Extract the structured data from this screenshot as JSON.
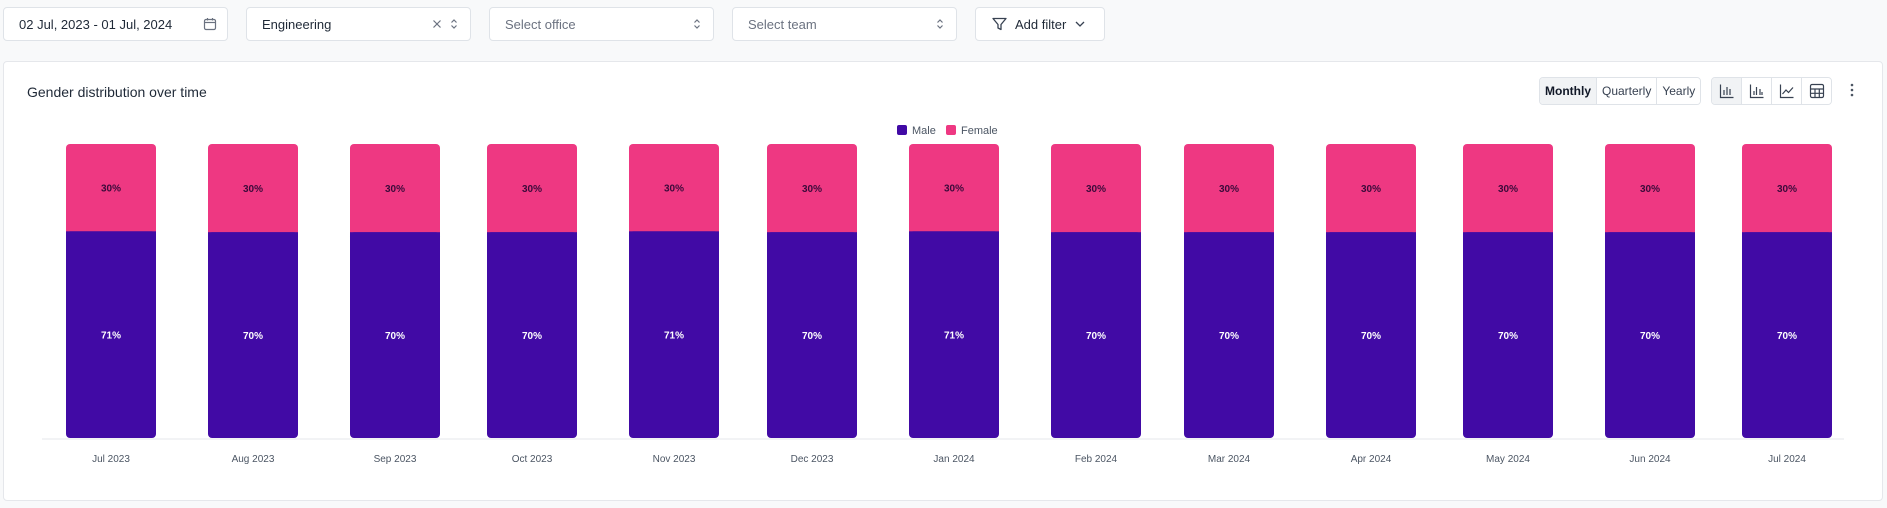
{
  "filters": {
    "date_range": "02 Jul, 2023 - 01 Jul, 2024",
    "department": "Engineering",
    "office_placeholder": "Select office",
    "team_placeholder": "Select team",
    "add_filter": "Add filter"
  },
  "panel": {
    "title": "Gender distribution over time",
    "periods": [
      "Monthly",
      "Quarterly",
      "Yearly"
    ],
    "active_period": "Monthly",
    "chart_types": [
      "stacked-bar-icon",
      "grouped-bar-icon",
      "line-chart-icon",
      "table-icon"
    ]
  },
  "colors": {
    "male": "#410aa5",
    "female": "#ee3882",
    "male_label": "#ffffff",
    "female_label": "#3a0a3a"
  },
  "chart_data": {
    "type": "bar",
    "stacked": true,
    "title": "Gender distribution over time",
    "categories": [
      "Jul 2023",
      "Aug 2023",
      "Sep 2023",
      "Oct 2023",
      "Nov 2023",
      "Dec 2023",
      "Jan 2024",
      "Feb 2024",
      "Mar 2024",
      "Apr 2024",
      "May 2024",
      "Jun 2024",
      "Jul 2024"
    ],
    "series": [
      {
        "name": "Male",
        "values": [
          71,
          70,
          70,
          70,
          71,
          70,
          71,
          70,
          70,
          70,
          70,
          70,
          70
        ],
        "labels": [
          "71%",
          "70%",
          "70%",
          "70%",
          "71%",
          "70%",
          "71%",
          "70%",
          "70%",
          "70%",
          "70%",
          "70%",
          "70%"
        ]
      },
      {
        "name": "Female",
        "values": [
          30,
          30,
          30,
          30,
          30,
          30,
          30,
          30,
          30,
          30,
          30,
          30,
          30
        ],
        "labels": [
          "30%",
          "30%",
          "30%",
          "30%",
          "30%",
          "30%",
          "30%",
          "30%",
          "30%",
          "30%",
          "30%",
          "30%",
          "30%"
        ]
      }
    ],
    "legend": [
      "Male",
      "Female"
    ],
    "legend_position": "top-center",
    "xlabel": "",
    "ylabel": "",
    "grid": false
  }
}
